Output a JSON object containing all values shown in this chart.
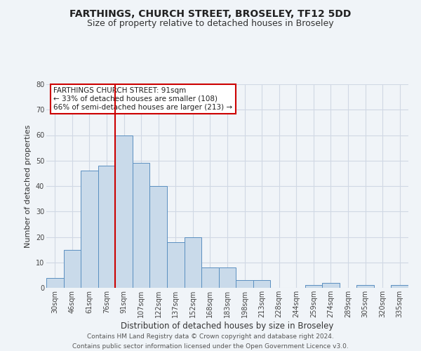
{
  "title": "FARTHINGS, CHURCH STREET, BROSELEY, TF12 5DD",
  "subtitle": "Size of property relative to detached houses in Broseley",
  "xlabel": "Distribution of detached houses by size in Broseley",
  "ylabel": "Number of detached properties",
  "footer_line1": "Contains HM Land Registry data © Crown copyright and database right 2024.",
  "footer_line2": "Contains public sector information licensed under the Open Government Licence v3.0.",
  "bar_labels": [
    "30sqm",
    "46sqm",
    "61sqm",
    "76sqm",
    "91sqm",
    "107sqm",
    "122sqm",
    "137sqm",
    "152sqm",
    "168sqm",
    "183sqm",
    "198sqm",
    "213sqm",
    "228sqm",
    "244sqm",
    "259sqm",
    "274sqm",
    "289sqm",
    "305sqm",
    "320sqm",
    "335sqm"
  ],
  "bar_values": [
    4,
    15,
    46,
    48,
    60,
    49,
    40,
    18,
    20,
    8,
    8,
    3,
    3,
    0,
    0,
    1,
    2,
    0,
    1,
    0,
    1
  ],
  "bar_color": "#c9daea",
  "bar_edge_color": "#5a8fc0",
  "grid_color": "#d0d8e4",
  "background_color": "#f0f4f8",
  "vline_x_index": 4,
  "vline_color": "#cc0000",
  "annotation_box_text": "FARTHINGS CHURCH STREET: 91sqm\n← 33% of detached houses are smaller (108)\n66% of semi-detached houses are larger (213) →",
  "annotation_box_edge_color": "#cc0000",
  "ylim": [
    0,
    80
  ],
  "yticks": [
    0,
    10,
    20,
    30,
    40,
    50,
    60,
    70,
    80
  ],
  "title_fontsize": 10,
  "subtitle_fontsize": 9,
  "xlabel_fontsize": 8.5,
  "ylabel_fontsize": 8,
  "tick_fontsize": 7,
  "annotation_fontsize": 7.5,
  "footer_fontsize": 6.5
}
